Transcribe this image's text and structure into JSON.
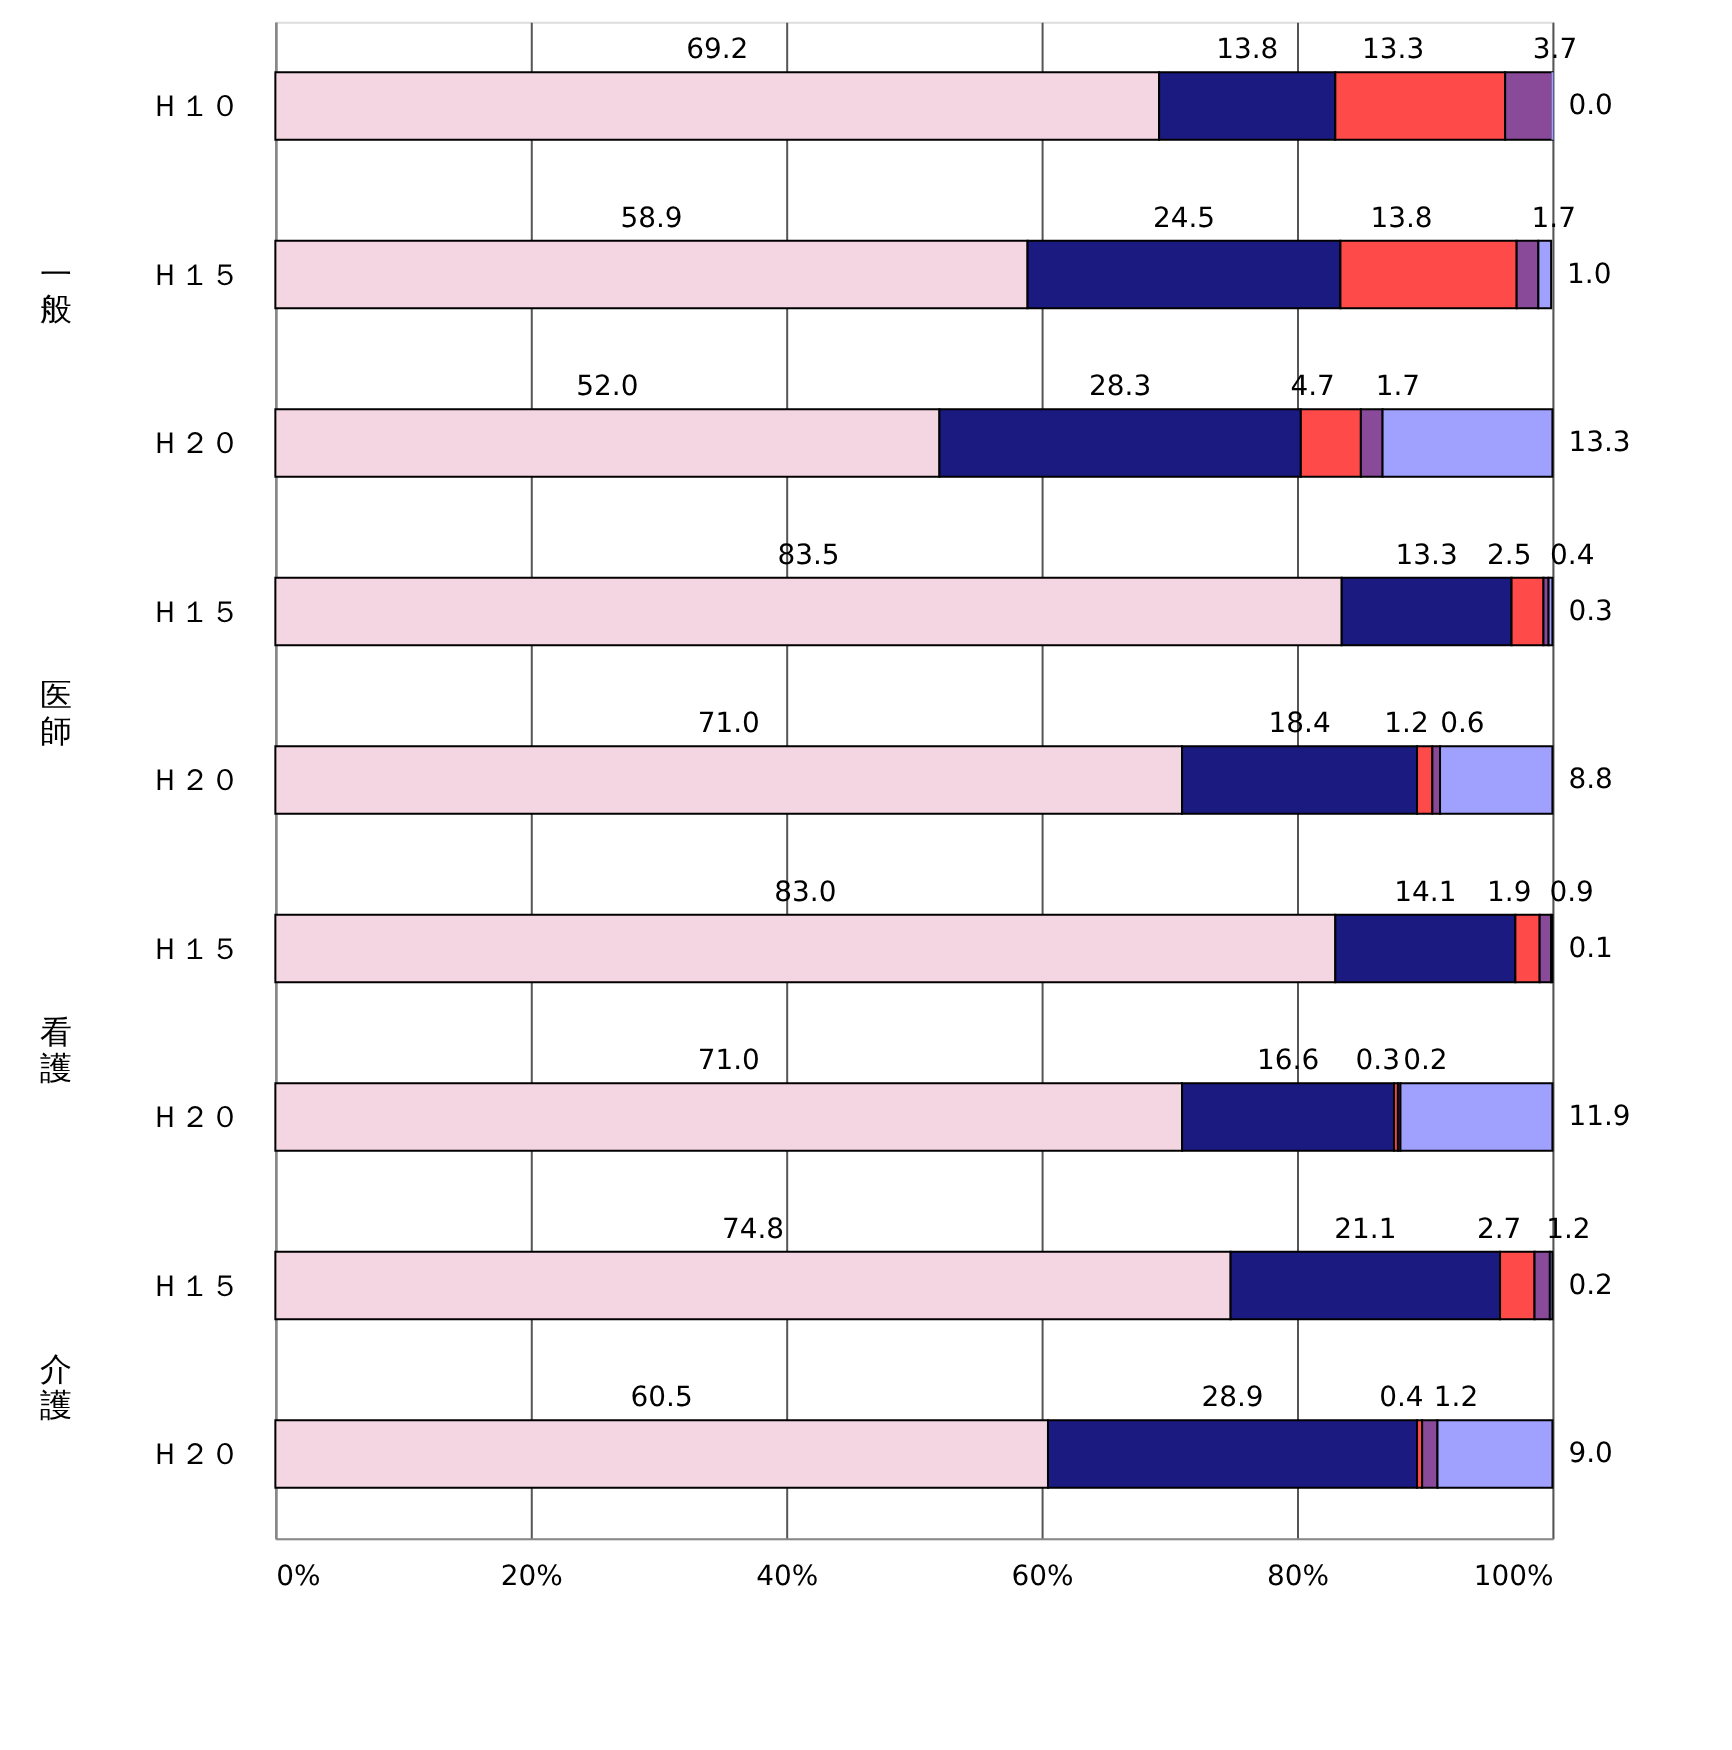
{
  "chart_data": {
    "type": "bar",
    "orientation": "horizontal",
    "stacked": true,
    "categories": [
      "Ｈ１０",
      "Ｈ１５",
      "Ｈ２０",
      "Ｈ１５",
      "Ｈ２０",
      "Ｈ１５",
      "Ｈ２０",
      "Ｈ１５",
      "Ｈ２０"
    ],
    "annotations": [
      "一般",
      "医師",
      "看護",
      "介護"
    ],
    "series": [
      {
        "color": "#f4d6e2",
        "values": [
          69.2,
          58.9,
          52.0,
          83.5,
          71.0,
          83.0,
          71.0,
          74.8,
          60.5
        ],
        "value_labels": [
          "69.2",
          "58.9",
          "52.0",
          "83.5",
          "71.0",
          "83.0",
          "71.0",
          "74.8",
          "60.5"
        ]
      },
      {
        "color": "#1a1a80",
        "values": [
          13.8,
          24.5,
          28.3,
          13.3,
          18.4,
          14.1,
          16.6,
          21.1,
          28.9
        ],
        "value_labels": [
          "13.8",
          "24.5",
          "28.3",
          "13.3",
          "18.4",
          "14.1",
          "16.6",
          "21.1",
          "28.9"
        ]
      },
      {
        "color": "#ff4a4a",
        "values": [
          13.3,
          13.8,
          4.7,
          2.5,
          1.2,
          1.9,
          0.3,
          2.7,
          0.4
        ],
        "value_labels": [
          "13.3",
          "13.8",
          "4.7",
          "2.5",
          "1.2",
          "1.9",
          "0.3",
          "2.7",
          "0.4"
        ]
      },
      {
        "color": "#8a4a9a",
        "values": [
          3.7,
          1.7,
          1.7,
          0.4,
          0.6,
          0.9,
          0.2,
          1.2,
          1.2
        ],
        "value_labels": [
          "3.7",
          "1.7",
          "1.7",
          "0.4",
          "0.6",
          "0.9",
          "0.2",
          "1.2",
          "1.2"
        ]
      },
      {
        "color": "#a0a0ff",
        "values": [
          0.0,
          1.0,
          13.3,
          0.3,
          8.8,
          0.1,
          11.9,
          0.2,
          9.0
        ],
        "value_labels": [
          "0.0",
          "1.0",
          "13.3",
          "0.3",
          "8.8",
          "0.1",
          "11.9",
          "0.2",
          "9.0"
        ]
      }
    ],
    "xlim": [
      0,
      100
    ],
    "xticks": [
      {
        "value": 0,
        "label": "0%"
      },
      {
        "value": 20,
        "label": "20%"
      },
      {
        "value": 40,
        "label": "40%"
      },
      {
        "value": 60,
        "label": "60%"
      },
      {
        "value": 80,
        "label": "80%"
      },
      {
        "value": 100,
        "label": "100%"
      }
    ],
    "grid": "x"
  }
}
